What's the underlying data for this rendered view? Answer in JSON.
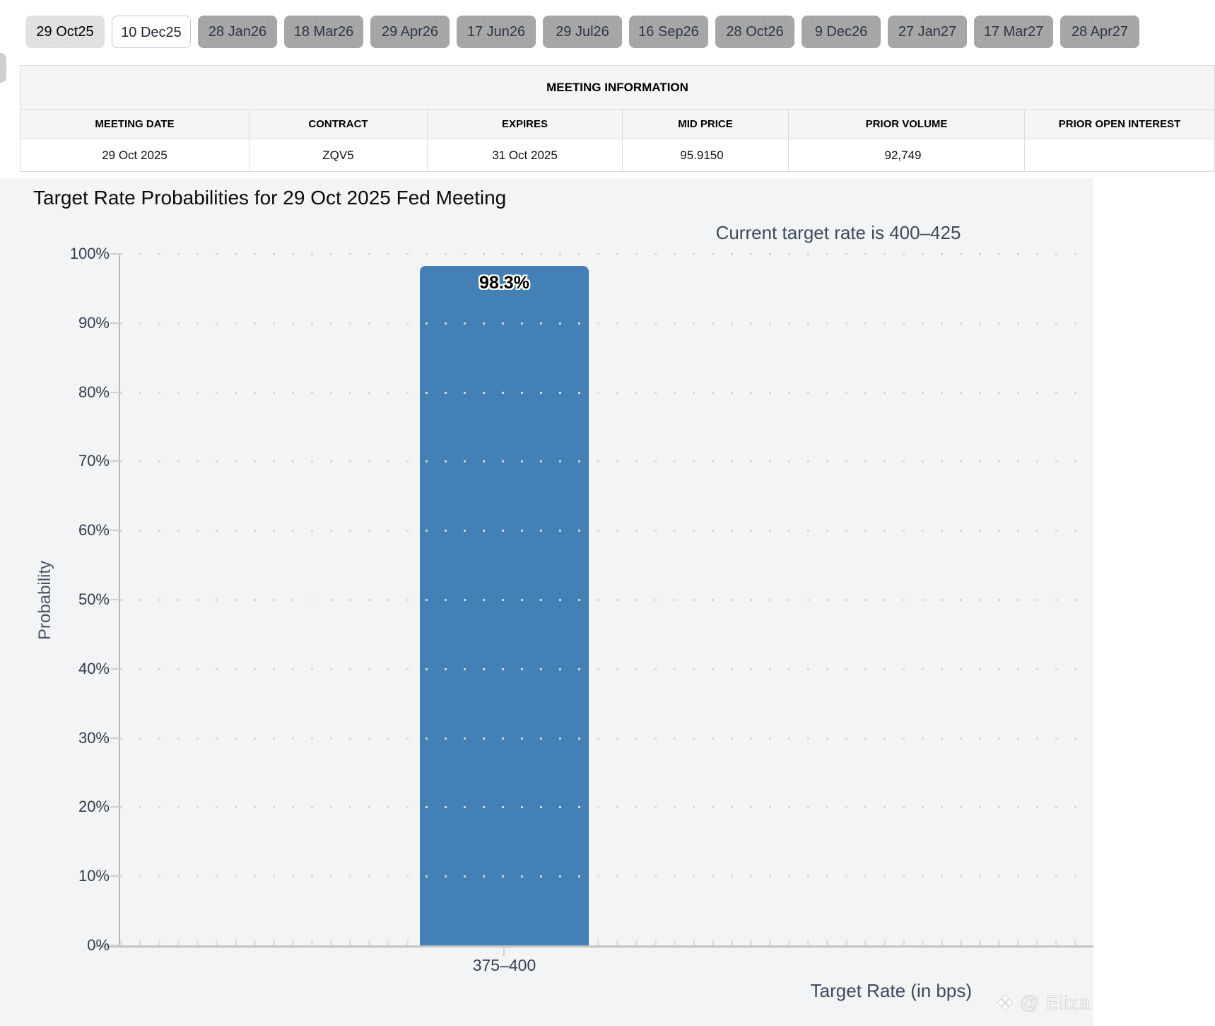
{
  "tabs": {
    "items": [
      {
        "label": "29 Oct25",
        "state": "selected"
      },
      {
        "label": "10 Dec25",
        "state": "highlight"
      },
      {
        "label": "28 Jan26",
        "state": "default"
      },
      {
        "label": "18 Mar26",
        "state": "default"
      },
      {
        "label": "29 Apr26",
        "state": "default"
      },
      {
        "label": "17 Jun26",
        "state": "default"
      },
      {
        "label": "29 Jul26",
        "state": "default"
      },
      {
        "label": "16 Sep26",
        "state": "default"
      },
      {
        "label": "28 Oct26",
        "state": "default"
      },
      {
        "label": "9 Dec26",
        "state": "default"
      },
      {
        "label": "27 Jan27",
        "state": "default"
      },
      {
        "label": "17 Mar27",
        "state": "default"
      },
      {
        "label": "28 Apr27",
        "state": "default"
      }
    ]
  },
  "meeting_table": {
    "title": "MEETING INFORMATION",
    "columns": [
      "MEETING DATE",
      "CONTRACT",
      "EXPIRES",
      "MID PRICE",
      "PRIOR VOLUME",
      "PRIOR OPEN INTEREST"
    ],
    "row": {
      "meeting_date": "29 Oct 2025",
      "contract": "ZQV5",
      "expires": "31 Oct 2025",
      "mid_price": "95.9150",
      "prior_volume": "92,749",
      "prior_open_interest": ""
    }
  },
  "chart_data": {
    "type": "bar",
    "title": "Target Rate Probabilities for 29 Oct 2025 Fed Meeting",
    "annotation": "Current target rate is 400–425",
    "categories": [
      "375–400"
    ],
    "values": [
      98.3
    ],
    "bar_labels": [
      "98.3%"
    ],
    "xlabel": "Target Rate (in bps)",
    "ylabel": "Probability",
    "ylim": [
      0,
      100
    ],
    "yticks": [
      0,
      10,
      20,
      30,
      40,
      50,
      60,
      70,
      80,
      90,
      100
    ],
    "ytick_suffix": "%",
    "grid": "dotted-horizontal",
    "legend": "none",
    "bar_color": "#4380b5"
  },
  "watermark": {
    "logo": "❖",
    "text": "@ Eliza"
  },
  "colors": {
    "bar": "#4380b5",
    "panel_bg": "#f3f4f5",
    "tab_gray": "#a7a7a7",
    "tab_selected": "#e2e2e2",
    "annotation_text": "#3d4a5c"
  }
}
